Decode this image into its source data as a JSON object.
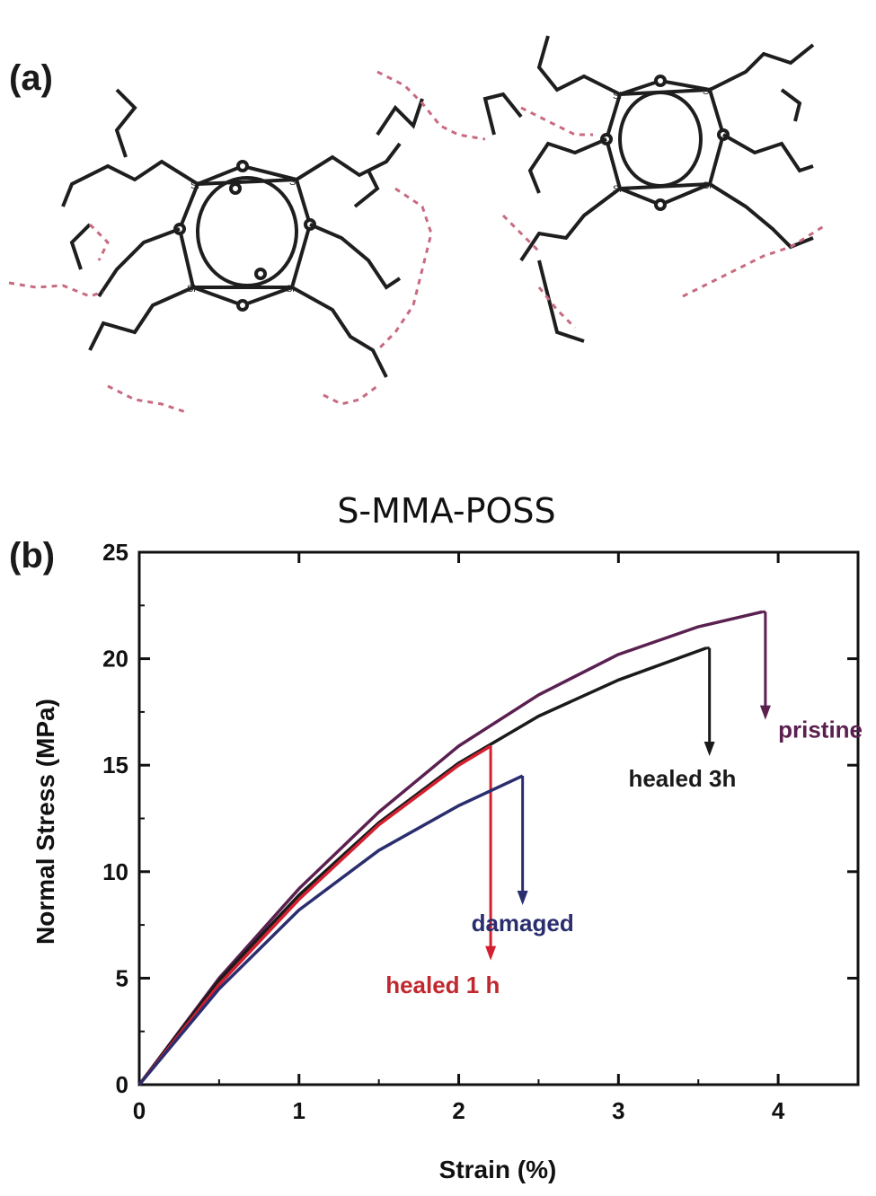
{
  "panels": {
    "a": "(a)",
    "b": "(b)"
  },
  "structure": {
    "atom_si": "Si"
  },
  "chart_data": {
    "type": "line",
    "title": "S-MMA-POSS",
    "xlabel": "Strain (%)",
    "ylabel": "Normal Stress (MPa)",
    "xlim": [
      0,
      4.5
    ],
    "ylim": [
      0,
      25
    ],
    "xticks": [
      0,
      1,
      2,
      3,
      4
    ],
    "yticks": [
      0,
      5,
      10,
      15,
      20,
      25
    ],
    "grid": false,
    "series": [
      {
        "name": "pristine",
        "color": "#5a2050",
        "x": [
          0,
          0.5,
          1.0,
          1.5,
          2.0,
          2.5,
          3.0,
          3.5,
          3.9
        ],
        "y": [
          0,
          5.0,
          9.2,
          12.8,
          15.9,
          18.3,
          20.2,
          21.5,
          22.2
        ],
        "break_x": 3.92,
        "break_y": 22.2,
        "arrow_to_y": 17.3
      },
      {
        "name": "healed 3h",
        "color": "#1a1a1a",
        "x": [
          0,
          0.5,
          1.0,
          1.5,
          2.0,
          2.5,
          3.0,
          3.55
        ],
        "y": [
          0,
          4.9,
          8.9,
          12.3,
          15.1,
          17.3,
          19.0,
          20.5
        ],
        "break_x": 3.57,
        "break_y": 20.5,
        "arrow_to_y": 15.6
      },
      {
        "name": "healed 1 h",
        "color": "#d22030",
        "x": [
          0,
          0.5,
          1.0,
          1.5,
          2.0,
          2.2
        ],
        "y": [
          0,
          4.7,
          8.7,
          12.2,
          15.0,
          15.9
        ],
        "break_x": 2.2,
        "break_y": 15.9,
        "arrow_to_y": 6.0
      },
      {
        "name": "damaged",
        "color": "#2a2e6e",
        "x": [
          0,
          0.5,
          1.0,
          1.5,
          2.0,
          2.4
        ],
        "y": [
          0,
          4.5,
          8.2,
          11.0,
          13.1,
          14.5
        ],
        "break_x": 2.4,
        "break_y": 14.5,
        "arrow_to_y": 8.6
      }
    ]
  }
}
